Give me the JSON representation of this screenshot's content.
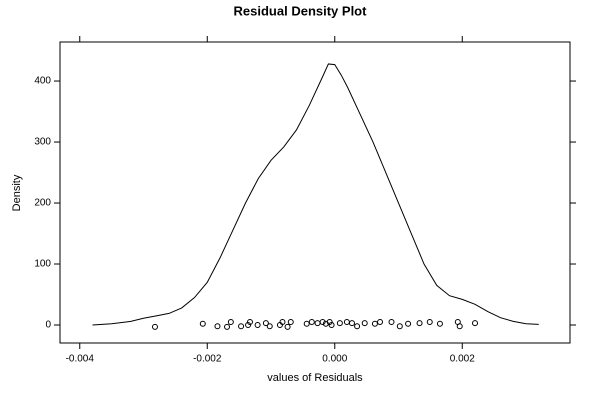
{
  "chart_data": {
    "type": "line",
    "title": "Residual Density Plot",
    "x_label": "values of Residuals",
    "y_label": "Density",
    "x": [
      -0.0038,
      -0.0035,
      -0.0032,
      -0.003,
      -0.0028,
      -0.0026,
      -0.0024,
      -0.0022,
      -0.002,
      -0.0018,
      -0.0016,
      -0.0014,
      -0.0012,
      -0.001,
      -0.0008,
      -0.0006,
      -0.0004,
      -0.0002,
      -0.0001,
      0,
      0.0001,
      0.0002,
      0.0004,
      0.0006,
      0.0008,
      0.001,
      0.0012,
      0.0014,
      0.0016,
      0.0018,
      0.002,
      0.0022,
      0.0024,
      0.0026,
      0.0028,
      0.003,
      0.0032
    ],
    "values": [
      0,
      2,
      6,
      11,
      15,
      19,
      28,
      45,
      70,
      110,
      155,
      200,
      240,
      270,
      292,
      320,
      360,
      405,
      428,
      427,
      410,
      390,
      345,
      300,
      250,
      200,
      150,
      100,
      65,
      48,
      42,
      34,
      22,
      12,
      6,
      2,
      1
    ],
    "color": "#000000",
    "points": {
      "x": [
        -0.00282,
        -0.00207,
        -0.00184,
        -0.00169,
        -0.00163,
        -0.00147,
        -0.00136,
        -0.00133,
        -0.00121,
        -0.00108,
        -0.00102,
        -0.00086,
        -0.00082,
        -0.00074,
        -0.00069,
        -0.00044,
        -0.00036,
        -0.00027,
        -0.00019,
        -0.00014,
        -8e-05,
        -5e-05,
        8e-05,
        0.00019,
        0.00027,
        0.00035,
        0.00047,
        0.00063,
        0.00071,
        0.00089,
        0.00102,
        0.00115,
        0.00133,
        0.00149,
        0.00165,
        0.00193,
        0.00196,
        0.0022
      ],
      "y": [
        -3,
        2,
        -2,
        -3,
        5,
        -2,
        0,
        5,
        0,
        3,
        -2,
        0,
        5,
        -3,
        5,
        2,
        5,
        3,
        5,
        2,
        5,
        0,
        3,
        5,
        3,
        -2,
        3,
        2,
        5,
        5,
        -2,
        2,
        3,
        5,
        2,
        5,
        -2,
        3
      ]
    },
    "xlim": [
      -0.00431,
      0.00369
    ],
    "ylim": [
      -29.5,
      464
    ],
    "xticks": [
      -0.004,
      -0.002,
      {
        "value": 0,
        "label": "0.000"
      },
      0.002
    ],
    "yticks": [
      0,
      100,
      200,
      300,
      400
    ]
  }
}
